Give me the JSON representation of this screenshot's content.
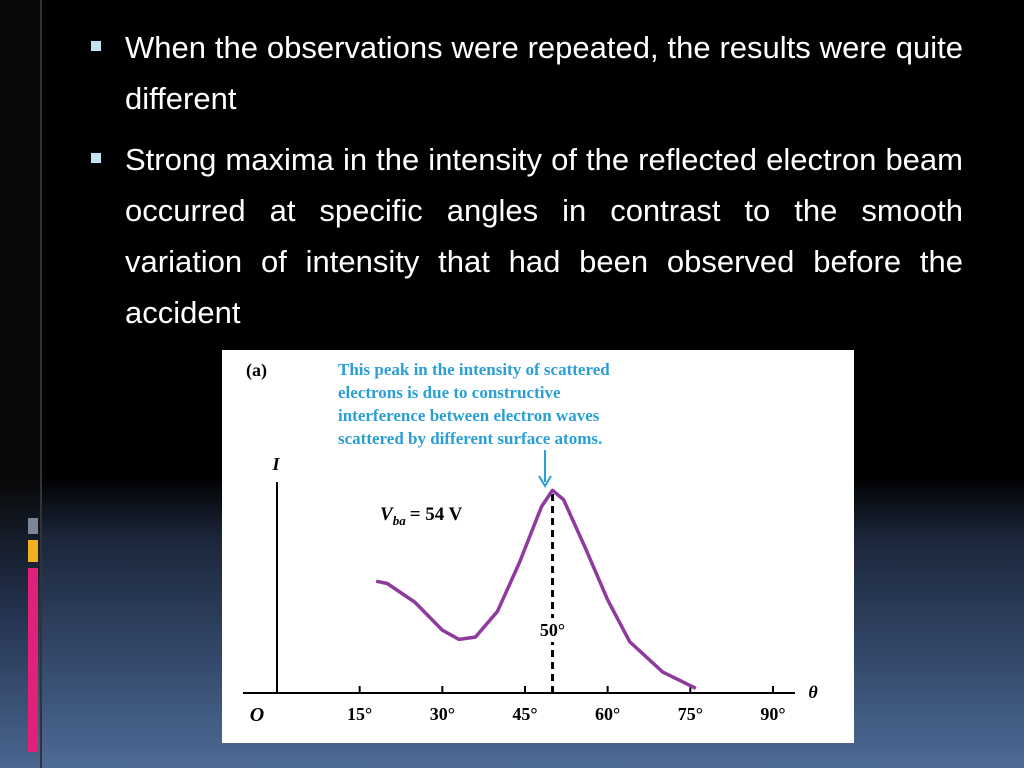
{
  "slide": {
    "bullets": [
      "When the observations were repeated, the results were quite different",
      "Strong maxima in the intensity of the reflected electron beam occurred at specific angles in contrast to the smooth variation of intensity that had been observed before the accident"
    ]
  },
  "chart_data": {
    "type": "line",
    "panel_label": "(a)",
    "callout": [
      "This peak in the intensity of scattered",
      "electrons is due to constructive",
      "interference between electron waves",
      "scattered by different surface atoms."
    ],
    "voltage_label": {
      "symbol": "V",
      "subscript": "ba",
      "text": "= 54 V"
    },
    "peak_line": {
      "x": 50,
      "label": "50°"
    },
    "origin_label": "O",
    "x_label": "θ",
    "y_label": "I",
    "x": [
      18,
      20,
      25,
      30,
      33,
      36,
      40,
      44,
      48,
      50,
      52,
      56,
      60,
      64,
      70,
      76
    ],
    "series": [
      {
        "color": "#8e3a9e",
        "values": [
          48,
          47,
          39,
          27,
          23,
          24,
          35,
          56,
          80,
          87,
          83,
          62,
          40,
          22,
          9,
          2
        ]
      }
    ],
    "xlim": [
      0,
      94
    ],
    "ylim": [
      0,
      100
    ],
    "xticks": [
      {
        "value": 15,
        "label": "15°"
      },
      {
        "value": 30,
        "label": "30°"
      },
      {
        "value": 45,
        "label": "45°"
      },
      {
        "value": 60,
        "label": "60°"
      },
      {
        "value": 75,
        "label": "75°"
      },
      {
        "value": 90,
        "label": "90°"
      }
    ]
  }
}
